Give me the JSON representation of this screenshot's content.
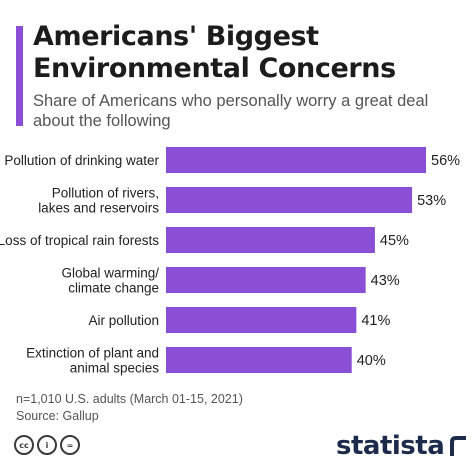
{
  "header": {
    "title": "Americans' Biggest Environmental Concerns",
    "subtitle": "Share of Americans who personally worry a great deal about the following"
  },
  "colors": {
    "accent": "#8a4fd4",
    "bar": "#8a4fd4",
    "text": "#222222"
  },
  "chart_data": {
    "type": "bar",
    "orientation": "horizontal",
    "title": "Americans' Biggest Environmental Concerns",
    "subtitle": "Share of Americans who personally worry a great deal about the following",
    "categories": [
      [
        "Pollution of drinking water"
      ],
      [
        "Pollution of rivers,",
        "lakes and reservoirs"
      ],
      [
        "Loss of tropical rain forests"
      ],
      [
        "Global warming/",
        "climate change"
      ],
      [
        "Air pollution"
      ],
      [
        "Extinction of plant and",
        "animal species"
      ]
    ],
    "values": [
      56,
      53,
      45,
      43,
      41,
      40
    ],
    "value_labels": [
      "56%",
      "53%",
      "45%",
      "43%",
      "41%",
      "40%"
    ],
    "unit": "%",
    "xlim": [
      0,
      56
    ],
    "grid": false,
    "legend": "none"
  },
  "footer": {
    "note": "n=1,010 U.S. adults (March 01-15, 2021)",
    "source": "Source: Gallup"
  },
  "license_icons": [
    {
      "name": "creative-commons-icon",
      "glyph": "cc"
    },
    {
      "name": "attribution-icon",
      "glyph": "i"
    },
    {
      "name": "no-derivatives-icon",
      "glyph": "="
    }
  ],
  "brand": {
    "name": "statista"
  }
}
